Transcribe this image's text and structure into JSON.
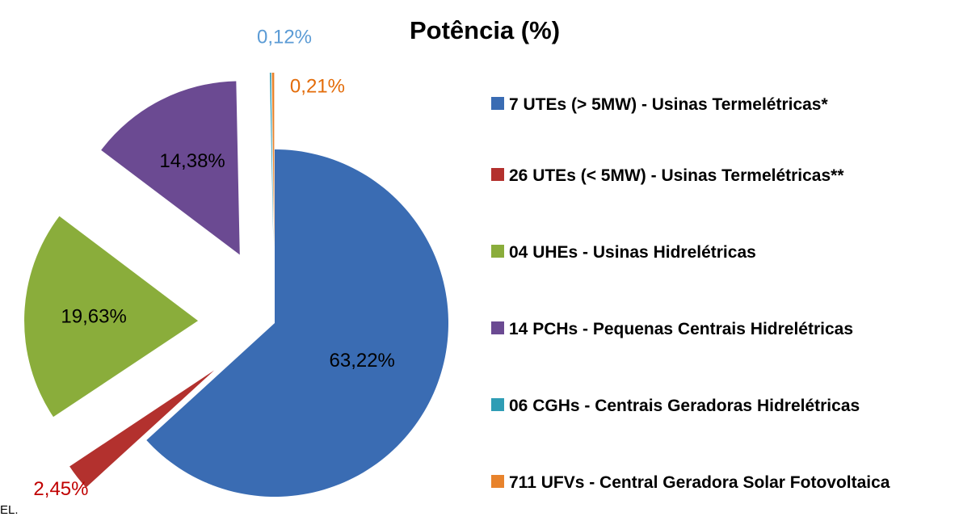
{
  "chart_data": {
    "type": "pie",
    "title": "Potência (%)",
    "categories": [
      "7 UTEs (> 5MW) - Usinas Termelétricas*",
      "26 UTEs (< 5MW) - Usinas Termelétricas**",
      "04 UHEs - Usinas Hidrelétricas",
      "14 PCHs - Pequenas Centrais Hidrelétricas",
      "06 CGHs - Centrais Geradoras Hidrelétricas",
      "711 UFVs - Central Geradora Solar Fotovoltaica"
    ],
    "values": [
      63.22,
      2.45,
      19.63,
      14.38,
      0.12,
      0.21
    ],
    "value_labels": [
      "63,22%",
      "2,45%",
      "19,63%",
      "14,38%",
      "0,12%",
      "0,21%"
    ],
    "colors": [
      "#3a6cb3",
      "#b3312e",
      "#8aad3b",
      "#6b4a92",
      "#2f9db5",
      "#e8832c"
    ],
    "label_colors": [
      "#000000",
      "#c00000",
      "#000000",
      "#000000",
      "#5b9bd5",
      "#e36c09"
    ],
    "footnote": "EL."
  }
}
